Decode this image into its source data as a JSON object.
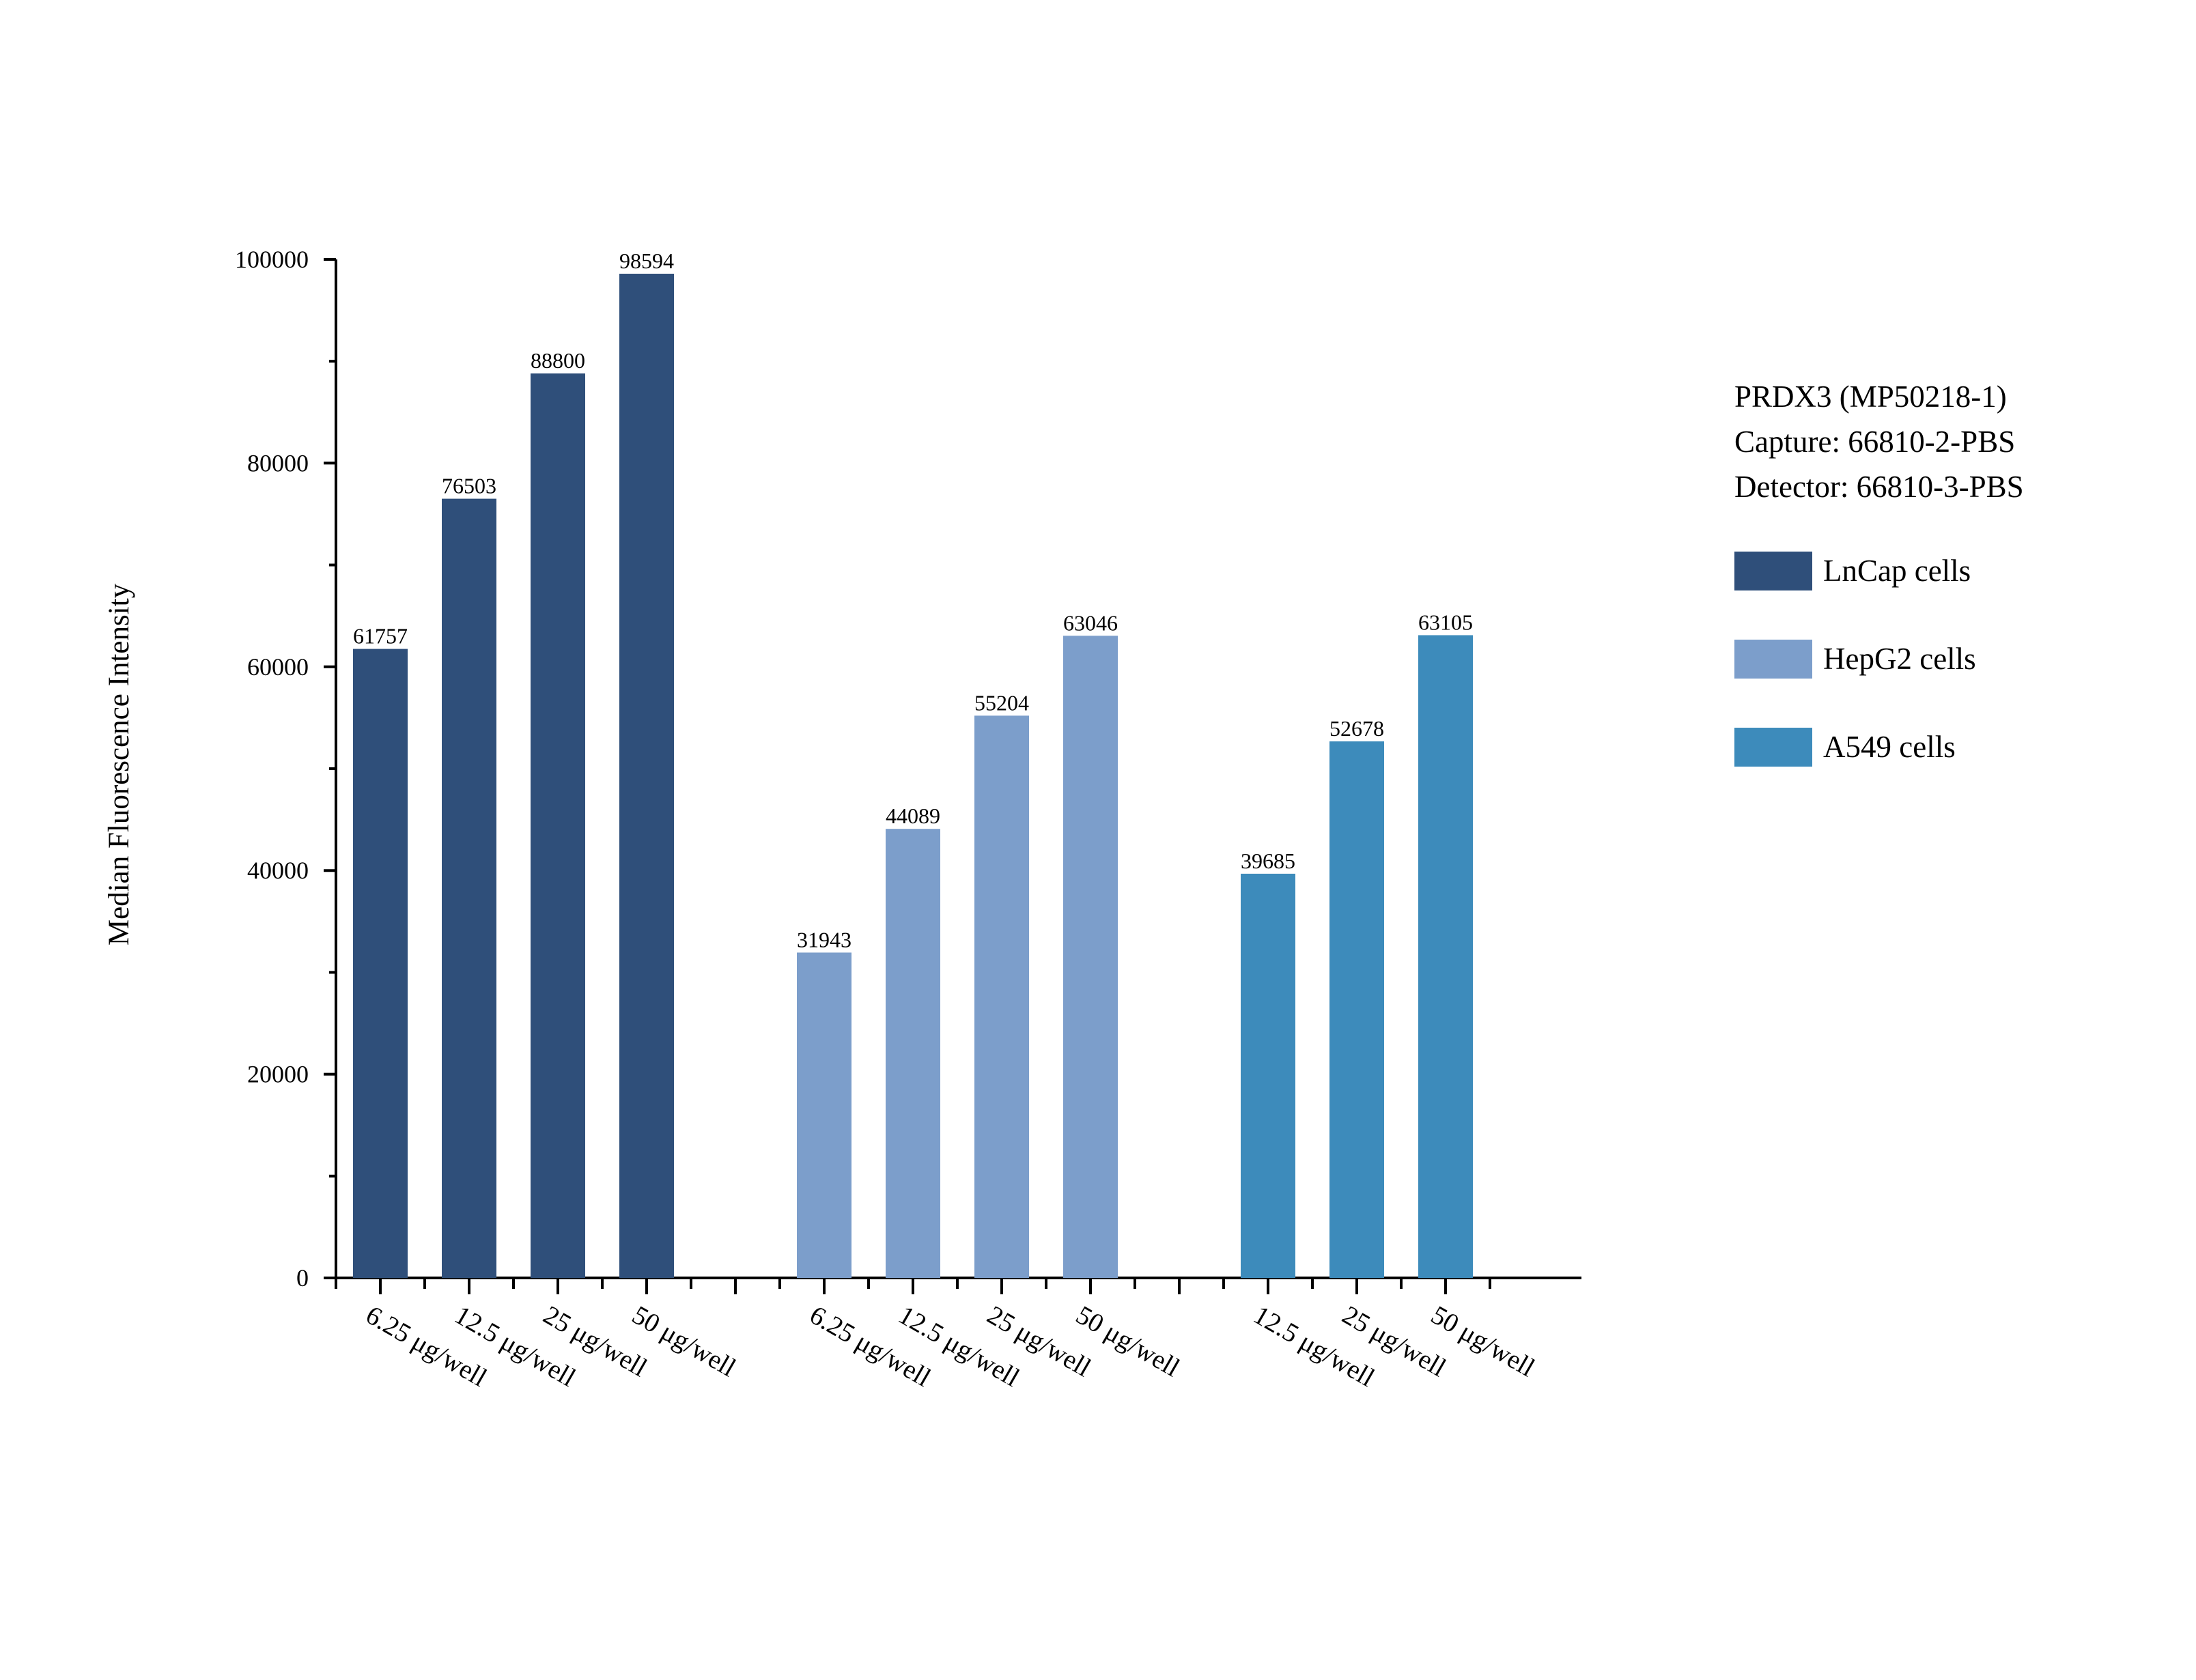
{
  "chart_data": {
    "type": "bar",
    "ylabel": "Median Fluorescence Intensity",
    "xlabel": "",
    "ylim": [
      0,
      100000
    ],
    "yticks": [
      "0",
      "20000",
      "40000",
      "60000",
      "80000",
      "100000"
    ],
    "info": [
      "PRDX3 (MP50218-1)",
      "Capture: 66810-2-PBS",
      "Detector: 66810-3-PBS"
    ],
    "series": [
      {
        "name": "LnCap cells",
        "color": "#2f4f7a",
        "categories": [
          "6.25 μg/well",
          "12.5 μg/well",
          "25 μg/well",
          "50 μg/well"
        ],
        "values": [
          61757,
          76503,
          88800,
          98594
        ],
        "labels": [
          "61757",
          "76503",
          "88800",
          "98594"
        ]
      },
      {
        "name": "HepG2 cells",
        "color": "#7c9ecb",
        "categories": [
          "6.25 μg/well",
          "12.5 μg/well",
          "25 μg/well",
          "50 μg/well"
        ],
        "values": [
          31943,
          44089,
          55204,
          63046
        ],
        "labels": [
          "31943",
          "44089",
          "55204",
          "63046"
        ]
      },
      {
        "name": "A549 cells",
        "color": "#3d8bbb",
        "categories": [
          "12.5 μg/well",
          "25 μg/well",
          "50 μg/well"
        ],
        "values": [
          39685,
          52678,
          63105
        ],
        "labels": [
          "39685",
          "52678",
          "63105"
        ]
      }
    ]
  }
}
